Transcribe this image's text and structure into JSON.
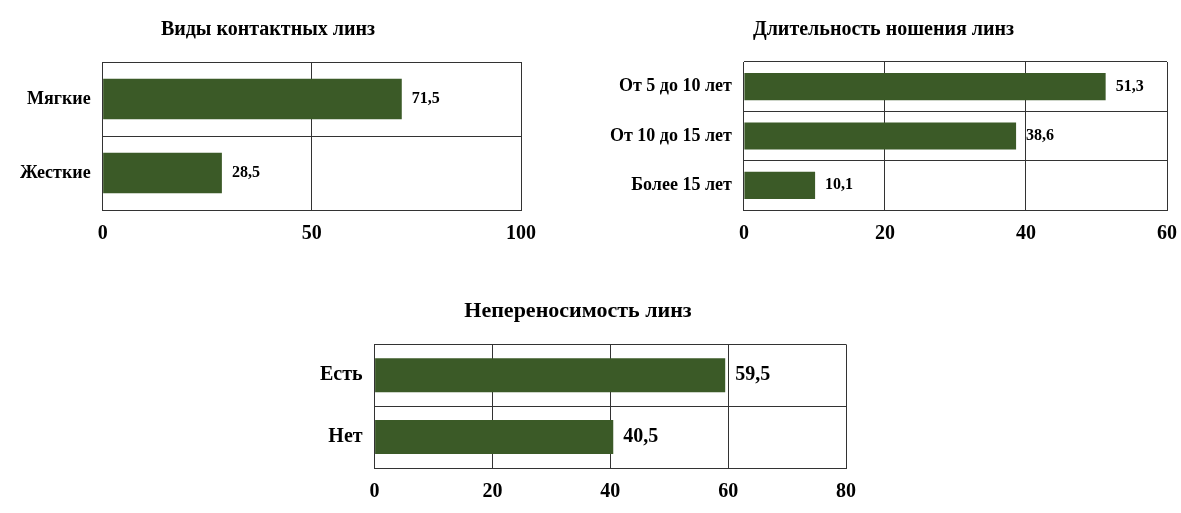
{
  "chart_data": [
    {
      "type": "bar",
      "orientation": "horizontal",
      "title": "Виды контактных линз",
      "categories": [
        "Мягкие",
        "Жесткие"
      ],
      "values": [
        71.5,
        28.5
      ],
      "value_labels": [
        "71,5",
        "28,5"
      ],
      "color": "#3b5a27",
      "xlim": [
        0,
        100
      ],
      "xticks": [
        0,
        50,
        100
      ],
      "grid": true,
      "legend": false
    },
    {
      "type": "bar",
      "orientation": "horizontal",
      "title": "Длительность ношения линз",
      "categories": [
        "От 5 до 10 лет",
        "От 10 до 15 лет",
        "Более 15 лет"
      ],
      "values": [
        51.3,
        38.6,
        10.1
      ],
      "value_labels": [
        "51,3",
        "38,6",
        "10,1"
      ],
      "color": "#3b5a27",
      "xlim": [
        0,
        60
      ],
      "xticks": [
        0,
        20,
        40,
        60
      ],
      "grid": true,
      "legend": false
    },
    {
      "type": "bar",
      "orientation": "horizontal",
      "title": "Непереносимость линз",
      "categories": [
        "Есть",
        "Нет"
      ],
      "values": [
        59.5,
        40.5
      ],
      "value_labels": [
        "59,5",
        "40,5"
      ],
      "color": "#3b5a27",
      "xlim": [
        0,
        80
      ],
      "xticks": [
        0,
        20,
        40,
        60,
        80
      ],
      "grid": true,
      "legend": false
    }
  ]
}
